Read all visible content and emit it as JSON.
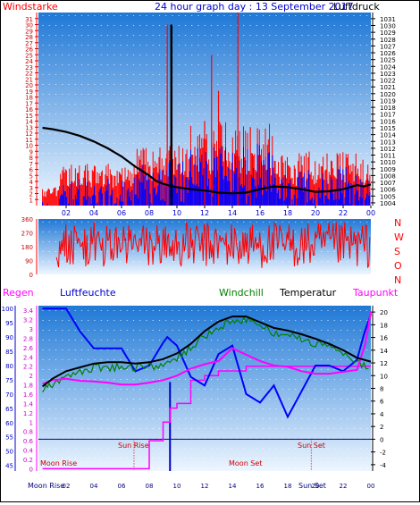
{
  "header": {
    "wind_label": "Windstarke",
    "title": "24 hour graph day : 13 September 2017",
    "pressure_label": "Luftdruck"
  },
  "colors": {
    "wind_gust": "#ff0000",
    "wind_avg": "#0000ff",
    "pressure": "#000000",
    "temperature": "#000000",
    "windchill": "#008000",
    "humidity": "#0000ff",
    "dewpoint": "#ff00ff",
    "rain": "#ff00ff",
    "grad_top": "#1f78d6",
    "grad_bottom": "#eef6ff"
  },
  "direction_labels": [
    "N",
    "W",
    "S",
    "O",
    "N"
  ],
  "lower_labels": {
    "rain": "Regen",
    "humidity": "Luftfeuchte",
    "windchill": "Windchill",
    "temperature": "Temperatur",
    "dewpoint": "Taupunkt"
  },
  "annotations": {
    "sun_rise": "Sun Rise",
    "sun_set": "Sun Set",
    "moon_rise": "Moon Rise",
    "moon_set": "Moon Set",
    "moon_rise_axis": "Moon Rise",
    "sun_set_axis": "Sun Set"
  },
  "chart_data": [
    {
      "type": "line",
      "name": "wind-pressure",
      "x_ticks": [
        "02",
        "04",
        "06",
        "08",
        "10",
        "12",
        "14",
        "16",
        "18",
        "20",
        "22",
        "00"
      ],
      "y_left_ticks": [
        1,
        2,
        3,
        4,
        5,
        6,
        7,
        8,
        9,
        10,
        11,
        12,
        13,
        14,
        15,
        16,
        17,
        18,
        19,
        20,
        21,
        22,
        23,
        24,
        25,
        26,
        27,
        28,
        29,
        30,
        31
      ],
      "y_right_ticks": [
        1004,
        1005,
        1006,
        1007,
        1008,
        1009,
        1010,
        1011,
        1012,
        1013,
        1014,
        1015,
        1016,
        1017,
        1018,
        1019,
        1020,
        1021,
        1022,
        1023,
        1024,
        1025,
        1026,
        1027,
        1028,
        1029,
        1030,
        1031
      ],
      "ylim_left": [
        0,
        32
      ],
      "ylim_right": [
        1003.6,
        1031.9
      ],
      "pressure": {
        "x_hours": [
          0.3,
          1,
          2,
          3,
          4,
          5,
          6,
          7,
          8,
          8.5,
          9,
          9.5,
          10,
          11,
          12,
          13,
          14,
          15,
          16,
          17,
          18,
          19,
          20,
          21,
          22,
          22.5,
          23,
          23.5,
          24
        ],
        "values": [
          1015,
          1014.8,
          1014.4,
          1013.8,
          1013,
          1012,
          1010.8,
          1009.3,
          1008,
          1007.2,
          1006.8,
          1006.5,
          1006.3,
          1006,
          1005.8,
          1005.5,
          1005.4,
          1005.5,
          1006,
          1006.4,
          1006.3,
          1006,
          1005.6,
          1005.7,
          1006,
          1006.3,
          1006.6,
          1006.4,
          1006.7
        ]
      },
      "gust_spikes": {
        "x_hours": [
          9.3,
          12,
          12.5,
          13,
          14.4,
          15.3
        ],
        "values": [
          30,
          14,
          25,
          19,
          36,
          13
        ]
      },
      "avg_spike": {
        "x_hours": [
          9.6
        ],
        "values": [
          30
        ]
      }
    },
    {
      "type": "scatter",
      "name": "wind-direction",
      "y_ticks": [
        0,
        90,
        180,
        270,
        360
      ],
      "ylim": [
        0,
        360
      ],
      "x_range_hours": [
        1.3,
        24
      ]
    },
    {
      "type": "line",
      "name": "climate",
      "left_ticks_pct": [
        45,
        50,
        55,
        60,
        65,
        70,
        75,
        80,
        85,
        90,
        95,
        100
      ],
      "rain_ticks": [
        0,
        0.2,
        0.4,
        0.6,
        0.8,
        1,
        1.2,
        1.4,
        1.6,
        1.8,
        2,
        2.2,
        2.4,
        2.6,
        2.8,
        3,
        3.2,
        3.4
      ],
      "right_ticks": [
        -4,
        -2,
        0,
        2,
        4,
        6,
        8,
        10,
        12,
        14,
        16,
        18,
        20
      ],
      "x_ticks": [
        "02",
        "04",
        "06",
        "08",
        "10",
        "12",
        "14",
        "16",
        "18",
        "20",
        "22",
        "00"
      ],
      "temperature": {
        "x_hours": [
          0.3,
          1,
          2,
          3,
          4,
          5,
          6,
          7,
          8,
          9,
          10,
          11,
          12,
          13,
          14,
          15,
          16,
          17,
          18,
          19,
          20,
          21,
          22,
          23,
          24
        ],
        "values": [
          8.3,
          9.5,
          10.7,
          11.3,
          11.9,
          12.1,
          12.1,
          11.9,
          12.1,
          12.6,
          13.5,
          15,
          17,
          18.5,
          19.3,
          19.3,
          18.4,
          17.5,
          17.1,
          16.5,
          15.8,
          15,
          14,
          12.8,
          12.2
        ]
      },
      "dewpoint": {
        "x_hours": [
          0.3,
          1,
          2,
          3,
          4,
          5,
          6,
          7,
          8,
          9,
          10,
          11,
          12,
          13,
          14,
          15,
          16,
          17,
          18,
          19,
          20,
          21,
          22,
          23,
          23.6,
          24
        ],
        "values": [
          8.7,
          9.3,
          9.5,
          9.2,
          9.1,
          8.9,
          8.6,
          8.6,
          8.9,
          9.3,
          10,
          11.1,
          11.8,
          12.3,
          14.3,
          13.3,
          12.3,
          11.6,
          11.4,
          10.7,
          10.3,
          10.3,
          10.6,
          10.9,
          15,
          20
        ]
      },
      "humidity_pct": {
        "x_hours": [
          0.3,
          2,
          3,
          4,
          5,
          6,
          7,
          8,
          9,
          9.3,
          10,
          11,
          12,
          13,
          14,
          15,
          16,
          17,
          18,
          19,
          20,
          21,
          22,
          23,
          23.5,
          24
        ],
        "values": [
          100,
          100,
          92,
          86,
          86,
          86,
          78,
          80,
          88,
          90,
          87,
          76,
          73,
          84,
          87,
          70,
          67,
          73,
          62,
          71,
          80,
          80,
          78,
          82,
          91,
          98
        ]
      },
      "rain_mm": {
        "x_hours": [
          7,
          8,
          9,
          9.5,
          10,
          11,
          12,
          13,
          14,
          15,
          16,
          17,
          18,
          19,
          20,
          21,
          22,
          23,
          24
        ],
        "values": [
          0,
          0.6,
          1,
          1.3,
          1.4,
          1.9,
          2,
          2.1,
          2.1,
          2.2,
          2.2,
          2.2,
          2.2,
          2.2,
          2.2,
          2.2,
          2.2,
          2.2,
          2.2
        ]
      }
    }
  ]
}
